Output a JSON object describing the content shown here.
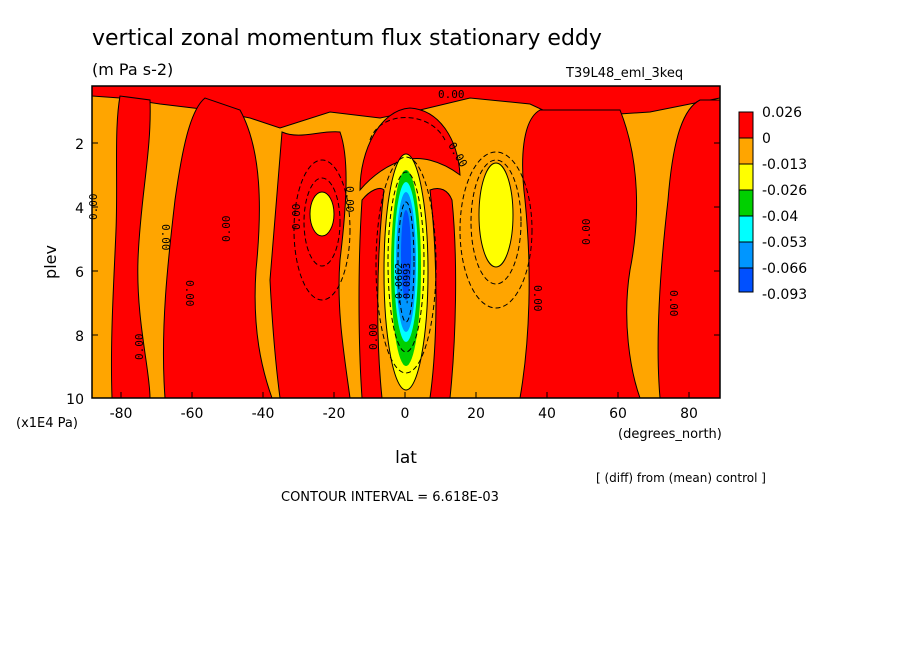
{
  "chart_data": {
    "type": "contour",
    "title": "vertical zonal momentum flux stationary eddy",
    "units": "(m Pa s-2)",
    "run_label": "T39L48_eml_3keq",
    "xlabel": "lat",
    "x_units": "(degrees_north)",
    "ylabel": "plev",
    "y_units": "(x1E4 Pa)",
    "xlim": [
      -90,
      87
    ],
    "ylim": [
      10,
      0.2
    ],
    "x_ticks": [
      -80,
      -60,
      -40,
      -20,
      0,
      20,
      40,
      60,
      80
    ],
    "y_ticks": [
      2,
      4,
      6,
      8,
      10
    ],
    "contour_interval_text": "CONTOUR INTERVAL = 6.618E-03",
    "diff_note": "[ (diff) from (mean) control ]",
    "contour_labels": [
      "0.00",
      "-0.0662",
      "-0.0993"
    ],
    "colorbar": {
      "levels": [
        "0.026",
        "0",
        "-0.013",
        "-0.026",
        "-0.04",
        "-0.053",
        "-0.066",
        "-0.093"
      ],
      "colors": [
        "#ff0000",
        "#ffa500",
        "#ffff00",
        "#00d000",
        "#00ffff",
        "#0096ff",
        "#0050ff"
      ]
    }
  }
}
